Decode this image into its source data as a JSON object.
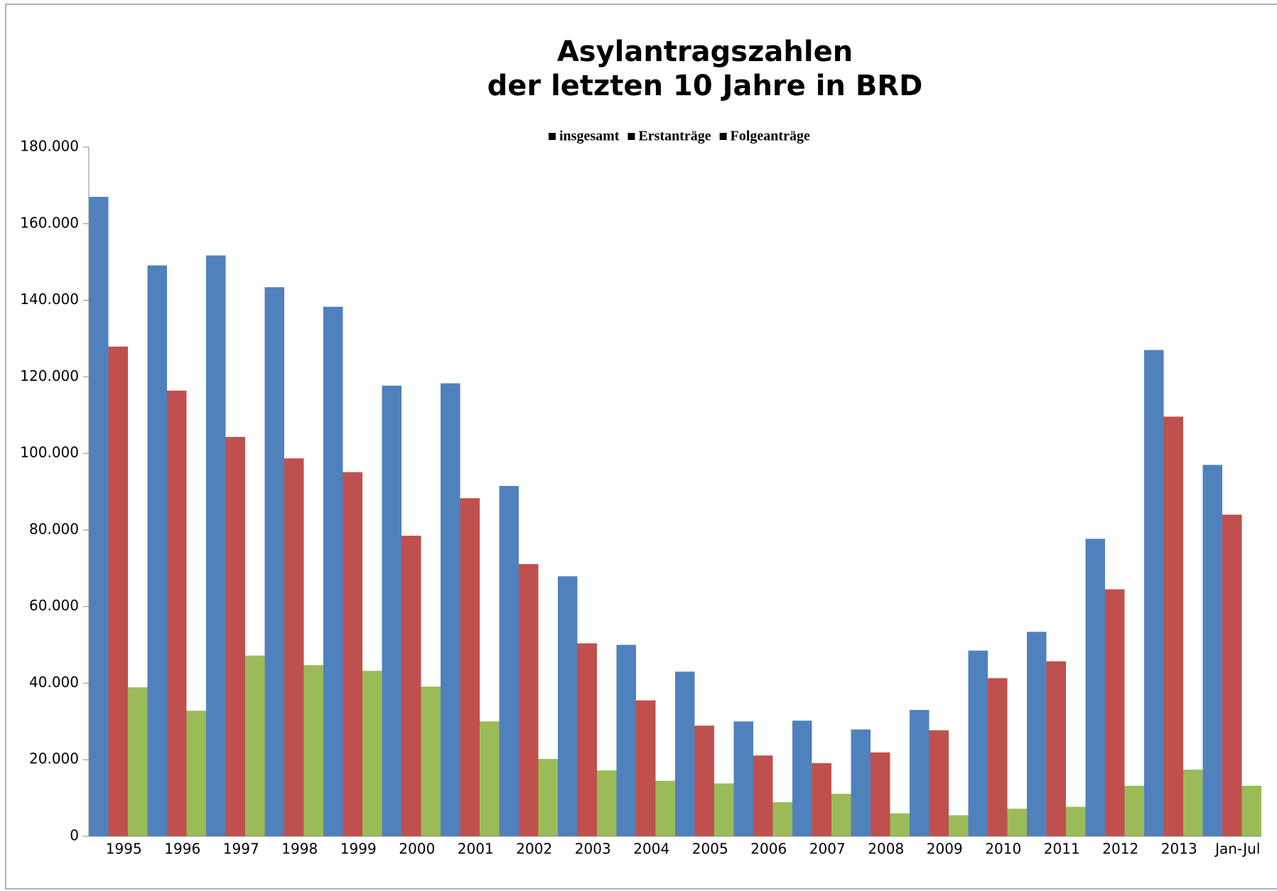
{
  "chart_data": {
    "type": "bar",
    "title": [
      "Asylantragszahlen",
      "der letzten 10 Jahre in BRD"
    ],
    "categories": [
      "1995",
      "1996",
      "1997",
      "1998",
      "1999",
      "2000",
      "2001",
      "2002",
      "2003",
      "2004",
      "2005",
      "2006",
      "2007",
      "2008",
      "2009",
      "2010",
      "2011",
      "2012",
      "2013",
      "Jan-Jul"
    ],
    "series": [
      {
        "name": "insgesamt",
        "color": "#4f81bd",
        "values": [
          167000,
          149100,
          151700,
          143400,
          138300,
          117700,
          118300,
          91500,
          67900,
          50000,
          43000,
          30000,
          30200,
          27900,
          33000,
          48500,
          53400,
          77700,
          127000,
          97000
        ]
      },
      {
        "name": "Erstanträge",
        "color": "#c0504d",
        "values": [
          127900,
          116400,
          104300,
          98700,
          95100,
          78500,
          88300,
          71100,
          50400,
          35500,
          28900,
          21100,
          19100,
          21900,
          27700,
          41300,
          45700,
          64500,
          109600,
          84000
        ]
      },
      {
        "name": "Folgeanträge",
        "color": "#9bbb59",
        "values": [
          38900,
          32800,
          47200,
          44700,
          43200,
          39100,
          30000,
          20200,
          17200,
          14500,
          13800,
          8900,
          11100,
          6000,
          5500,
          7200,
          7700,
          13200,
          17400,
          13200
        ]
      }
    ],
    "ylim": [
      0,
      180000
    ],
    "yticks": [
      0,
      {
        "value": 20000,
        "label": "20.000"
      },
      {
        "value": 40000,
        "label": "40.000"
      },
      {
        "value": 60000,
        "label": "60.000"
      },
      {
        "value": 80000,
        "label": "80.000"
      },
      {
        "value": 100000,
        "label": "100.000"
      },
      {
        "value": 120000,
        "label": "120.000"
      },
      {
        "value": 140000,
        "label": "140.000"
      },
      {
        "value": 160000,
        "label": "160.000"
      },
      {
        "value": 180000,
        "label": "180.000"
      }
    ],
    "legend": "top",
    "grid": false
  }
}
